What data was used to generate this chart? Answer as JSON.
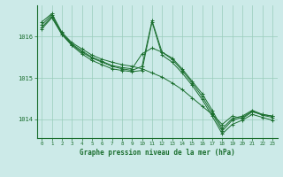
{
  "title": "Graphe pression niveau de la mer (hPa)",
  "bg_color": "#cceae8",
  "grid_color": "#99ccbb",
  "line_color": "#1a6e2e",
  "xlim": [
    -0.5,
    23.5
  ],
  "ylim": [
    1013.55,
    1016.75
  ],
  "yticks": [
    1014,
    1015,
    1016
  ],
  "xticks": [
    0,
    1,
    2,
    3,
    4,
    5,
    6,
    7,
    8,
    9,
    10,
    11,
    12,
    13,
    14,
    15,
    16,
    17,
    18,
    19,
    20,
    21,
    22,
    23
  ],
  "series": [
    [
      1016.35,
      1016.55,
      1016.1,
      1015.85,
      1015.7,
      1015.55,
      1015.45,
      1015.38,
      1015.32,
      1015.28,
      1015.22,
      1015.12,
      1015.02,
      1014.88,
      1014.72,
      1014.52,
      1014.32,
      1014.12,
      1013.88,
      1014.08,
      1014.02,
      1014.18,
      1014.12,
      1014.08
    ],
    [
      1016.28,
      1016.52,
      1016.08,
      1015.82,
      1015.65,
      1015.5,
      1015.4,
      1015.3,
      1015.25,
      1015.22,
      1015.58,
      1015.72,
      1015.62,
      1015.48,
      1015.22,
      1014.92,
      1014.62,
      1014.22,
      1013.78,
      1014.02,
      1014.08,
      1014.22,
      1014.12,
      1014.08
    ],
    [
      1016.22,
      1016.48,
      1016.05,
      1015.8,
      1015.62,
      1015.48,
      1015.38,
      1015.28,
      1015.22,
      1015.18,
      1015.28,
      1016.38,
      1015.62,
      1015.45,
      1015.18,
      1014.88,
      1014.55,
      1014.15,
      1013.72,
      1013.98,
      1014.05,
      1014.2,
      1014.1,
      1014.05
    ],
    [
      1016.18,
      1016.45,
      1016.05,
      1015.78,
      1015.58,
      1015.42,
      1015.32,
      1015.22,
      1015.18,
      1015.15,
      1015.18,
      1016.35,
      1015.55,
      1015.38,
      1015.12,
      1014.82,
      1014.48,
      1014.08,
      1013.65,
      1013.88,
      1013.98,
      1014.12,
      1014.05,
      1013.98
    ]
  ]
}
